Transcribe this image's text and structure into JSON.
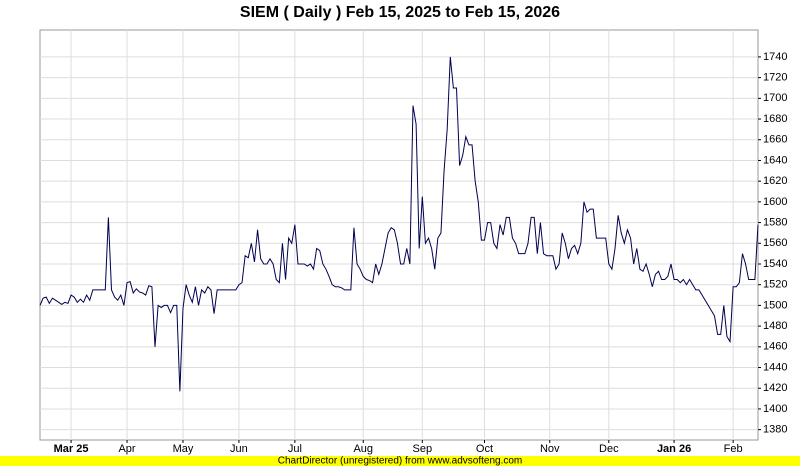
{
  "chart_data": {
    "type": "line",
    "title": "SIEM ( Daily ) Feb 15, 2025 to Feb 15, 2026",
    "footer": "ChartDirector (unregistered) from www.advsofteng.com",
    "color": "#000050",
    "grid": true,
    "yaxis_side": "right",
    "xlim": [
      0,
      231
    ],
    "ylim": [
      1370,
      1766
    ],
    "yticks": [
      1380,
      1400,
      1420,
      1440,
      1460,
      1480,
      1500,
      1520,
      1540,
      1560,
      1580,
      1600,
      1620,
      1640,
      1660,
      1680,
      1700,
      1720,
      1740
    ],
    "xticks": [
      {
        "value": 10,
        "label": "Mar 25"
      },
      {
        "value": 28,
        "label": "Apr"
      },
      {
        "value": 46,
        "label": "May"
      },
      {
        "value": 64,
        "label": "Jun"
      },
      {
        "value": 82,
        "label": "Jul"
      },
      {
        "value": 104,
        "label": "Aug"
      },
      {
        "value": 123,
        "label": "Sep"
      },
      {
        "value": 143,
        "label": "Oct"
      },
      {
        "value": 164,
        "label": "Nov"
      },
      {
        "value": 183,
        "label": "Dec"
      },
      {
        "value": 204,
        "label": "Jan 26"
      },
      {
        "value": 223,
        "label": "Feb"
      }
    ],
    "values": [
      1500,
      1507,
      1508,
      1502,
      1507,
      1505,
      1503,
      1501,
      1503,
      1502,
      1510,
      1508,
      1503,
      1506,
      1503,
      1510,
      1505,
      1515,
      1515,
      1515,
      1515,
      1515,
      1585,
      1515,
      1508,
      1505,
      1510,
      1500,
      1522,
      1523,
      1512,
      1516,
      1513,
      1512,
      1510,
      1519,
      1518,
      1460,
      1500,
      1498,
      1500,
      1500,
      1493,
      1500,
      1500,
      1417,
      1497,
      1520,
      1510,
      1503,
      1518,
      1500,
      1515,
      1512,
      1518,
      1515,
      1492,
      1515,
      1515,
      1515,
      1515,
      1515,
      1515,
      1515,
      1520,
      1522,
      1548,
      1546,
      1560,
      1542,
      1573,
      1545,
      1540,
      1540,
      1545,
      1540,
      1525,
      1522,
      1560,
      1525,
      1565,
      1560,
      1578,
      1540,
      1540,
      1540,
      1538,
      1540,
      1535,
      1555,
      1553,
      1540,
      1535,
      1528,
      1520,
      1518,
      1518,
      1517,
      1515,
      1515,
      1515,
      1575,
      1540,
      1535,
      1528,
      1525,
      1524,
      1522,
      1540,
      1530,
      1540,
      1555,
      1570,
      1575,
      1573,
      1560,
      1540,
      1540,
      1555,
      1540,
      1693,
      1675,
      1555,
      1605,
      1560,
      1565,
      1555,
      1535,
      1565,
      1570,
      1630,
      1670,
      1740,
      1710,
      1710,
      1635,
      1645,
      1663,
      1655,
      1655,
      1620,
      1600,
      1563,
      1563,
      1580,
      1580,
      1560,
      1555,
      1578,
      1568,
      1585,
      1585,
      1565,
      1560,
      1550,
      1550,
      1550,
      1560,
      1585,
      1585,
      1550,
      1580,
      1550,
      1548,
      1548,
      1548,
      1535,
      1540,
      1570,
      1560,
      1545,
      1555,
      1558,
      1550,
      1560,
      1600,
      1590,
      1593,
      1593,
      1565,
      1565,
      1565,
      1565,
      1540,
      1535,
      1555,
      1587,
      1570,
      1560,
      1573,
      1565,
      1540,
      1555,
      1535,
      1533,
      1540,
      1530,
      1518,
      1530,
      1533,
      1525,
      1525,
      1528,
      1540,
      1525,
      1525,
      1522,
      1525,
      1520,
      1525,
      1520,
      1515,
      1515,
      1510,
      1505,
      1500,
      1495,
      1490,
      1472,
      1472,
      1500,
      1470,
      1465,
      1518,
      1518,
      1522,
      1550,
      1540,
      1525,
      1525,
      1525,
      1578
    ]
  }
}
